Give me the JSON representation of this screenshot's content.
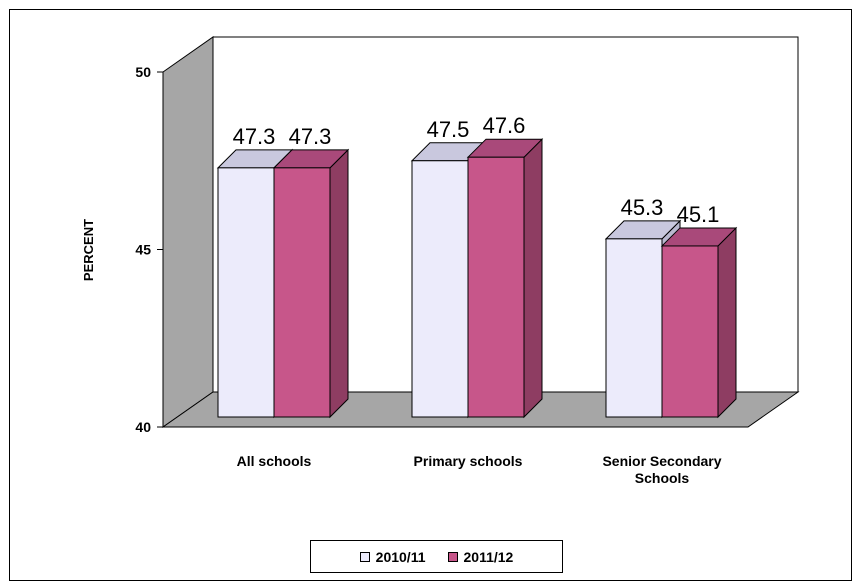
{
  "chart_data": {
    "type": "bar",
    "categories": [
      [
        "All schools"
      ],
      [
        "Primary schools"
      ],
      [
        "Senior Secondary",
        "Schools"
      ]
    ],
    "series": [
      {
        "name": "2010/11",
        "values": [
          47.3,
          47.5,
          45.3
        ],
        "labels": [
          "47.3",
          "47.5",
          "45.3"
        ],
        "color": "#ECEBFB",
        "side_color": "#B9B8CF",
        "top_color": "#C9C8DE"
      },
      {
        "name": "2011/12",
        "values": [
          47.3,
          47.6,
          45.1
        ],
        "labels": [
          "47.3",
          "47.6",
          "45.1"
        ],
        "color": "#C7568A",
        "side_color": "#8E3D62",
        "top_color": "#A9497A"
      }
    ],
    "ylabel": "PERCENT",
    "ylim": [
      40,
      50
    ],
    "yticks": [
      "40",
      "45",
      "50"
    ],
    "grid": false,
    "legend": "bottom",
    "wall_color": "#A6A6A6"
  }
}
